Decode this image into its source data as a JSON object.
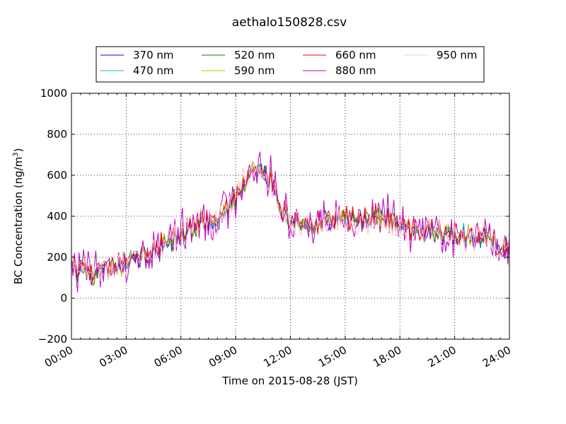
{
  "chart_data": {
    "type": "line",
    "title": "aethalo150828.csv",
    "xlabel": "Time on 2015-08-28 (JST)",
    "ylabel_main": "BC Concentration (ng/m",
    "ylabel_sup": "3",
    "ylabel_close": ")",
    "xlim": [
      0,
      24
    ],
    "ylim": [
      -200,
      1000
    ],
    "x_ticks": [
      {
        "value": 0,
        "label": "00:00"
      },
      {
        "value": 3,
        "label": "03:00"
      },
      {
        "value": 6,
        "label": "06:00"
      },
      {
        "value": 9,
        "label": "09:00"
      },
      {
        "value": 12,
        "label": "12:00"
      },
      {
        "value": 15,
        "label": "15:00"
      },
      {
        "value": 18,
        "label": "18:00"
      },
      {
        "value": 21,
        "label": "21:00"
      },
      {
        "value": 24,
        "label": "24:00"
      }
    ],
    "y_ticks": [
      {
        "value": -200,
        "label": "−200"
      },
      {
        "value": 0,
        "label": "0"
      },
      {
        "value": 200,
        "label": "200"
      },
      {
        "value": 400,
        "label": "400"
      },
      {
        "value": 600,
        "label": "600"
      },
      {
        "value": 800,
        "label": "800"
      },
      {
        "value": 1000,
        "label": "1000"
      }
    ],
    "grid": true,
    "legend_placement": "top, above plot",
    "x": [
      0,
      0.5,
      1,
      1.5,
      2,
      2.5,
      3,
      3.5,
      4,
      4.5,
      5,
      5.5,
      6,
      6.5,
      7,
      7.5,
      8,
      8.5,
      9,
      9.5,
      10,
      10.5,
      11,
      11.5,
      12,
      12.5,
      13,
      13.5,
      14,
      14.5,
      15,
      15.5,
      16,
      16.5,
      17,
      17.5,
      18,
      18.5,
      19,
      19.5,
      20,
      20.5,
      21,
      21.5,
      22,
      22.5,
      23,
      23.5,
      24
    ],
    "series": [
      {
        "name": "370 nm",
        "color": "#0000ff",
        "noise": 25,
        "values": [
          120,
          120,
          110,
          120,
          125,
          130,
          160,
          180,
          200,
          220,
          240,
          270,
          290,
          330,
          360,
          350,
          380,
          420,
          480,
          560,
          620,
          600,
          560,
          420,
          380,
          360,
          350,
          340,
          370,
          370,
          380,
          380,
          370,
          390,
          370,
          370,
          350,
          330,
          320,
          310,
          330,
          310,
          300,
          300,
          290,
          280,
          280,
          260,
          240
        ]
      },
      {
        "name": "470 nm",
        "color": "#00bfbf",
        "noise": 28,
        "values": [
          125,
          125,
          115,
          125,
          130,
          135,
          165,
          185,
          205,
          225,
          245,
          275,
          295,
          335,
          365,
          355,
          385,
          425,
          485,
          565,
          625,
          605,
          565,
          425,
          385,
          365,
          355,
          345,
          375,
          375,
          385,
          385,
          375,
          395,
          375,
          375,
          355,
          335,
          325,
          315,
          335,
          315,
          305,
          305,
          295,
          285,
          285,
          265,
          245
        ]
      },
      {
        "name": "520 nm",
        "color": "#008000",
        "noise": 30,
        "values": [
          128,
          128,
          118,
          128,
          133,
          138,
          168,
          188,
          208,
          228,
          248,
          278,
          298,
          338,
          368,
          358,
          388,
          428,
          488,
          568,
          628,
          608,
          568,
          428,
          388,
          368,
          358,
          348,
          378,
          378,
          388,
          388,
          378,
          398,
          378,
          378,
          358,
          338,
          328,
          318,
          338,
          318,
          308,
          308,
          298,
          288,
          288,
          268,
          248
        ]
      },
      {
        "name": "590 nm",
        "color": "#bfbf00",
        "noise": 32,
        "values": [
          130,
          130,
          120,
          130,
          135,
          140,
          170,
          190,
          210,
          230,
          250,
          280,
          300,
          340,
          370,
          360,
          390,
          430,
          490,
          570,
          630,
          610,
          570,
          430,
          390,
          370,
          360,
          350,
          380,
          380,
          390,
          390,
          380,
          400,
          380,
          380,
          360,
          340,
          330,
          320,
          340,
          320,
          310,
          310,
          300,
          290,
          290,
          270,
          250
        ]
      },
      {
        "name": "660 nm",
        "color": "#ff0000",
        "noise": 38,
        "values": [
          135,
          135,
          125,
          135,
          140,
          145,
          175,
          195,
          215,
          235,
          255,
          285,
          305,
          345,
          375,
          365,
          395,
          435,
          495,
          575,
          635,
          615,
          575,
          435,
          395,
          375,
          365,
          355,
          385,
          385,
          395,
          395,
          385,
          405,
          385,
          385,
          365,
          345,
          335,
          325,
          345,
          325,
          315,
          315,
          305,
          295,
          295,
          275,
          255
        ]
      },
      {
        "name": "880 nm",
        "color": "#bf00bf",
        "noise": 90,
        "values": [
          130,
          140,
          120,
          135,
          140,
          150,
          170,
          190,
          215,
          240,
          255,
          285,
          310,
          350,
          385,
          370,
          400,
          440,
          500,
          590,
          640,
          620,
          580,
          440,
          400,
          380,
          370,
          360,
          390,
          390,
          400,
          400,
          390,
          410,
          390,
          380,
          360,
          340,
          330,
          320,
          350,
          320,
          310,
          310,
          300,
          290,
          290,
          270,
          250
        ]
      },
      {
        "name": "950 nm",
        "color": "#ffc0cb",
        "noise": 55,
        "values": [
          125,
          130,
          115,
          130,
          135,
          140,
          165,
          185,
          210,
          230,
          250,
          280,
          300,
          340,
          370,
          360,
          390,
          430,
          500,
          580,
          620,
          600,
          560,
          420,
          380,
          350,
          340,
          330,
          360,
          360,
          380,
          370,
          360,
          380,
          370,
          360,
          340,
          330,
          320,
          310,
          330,
          310,
          300,
          300,
          290,
          280,
          280,
          260,
          240
        ]
      }
    ]
  }
}
